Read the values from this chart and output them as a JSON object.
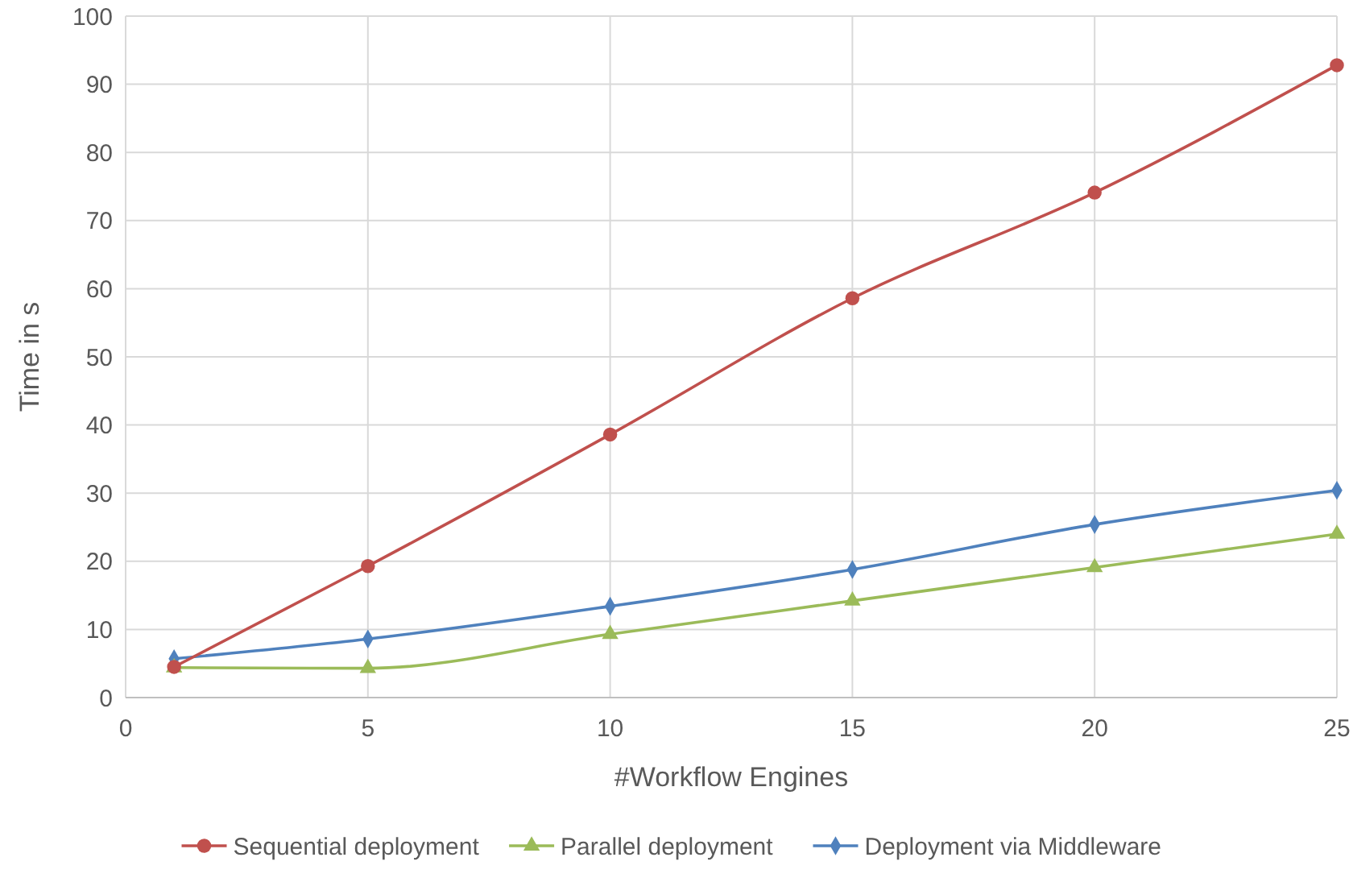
{
  "chart_data": {
    "type": "line",
    "xlabel": "#Workflow Engines",
    "ylabel": "Time in s",
    "x": [
      1,
      5,
      10,
      15,
      20,
      25
    ],
    "series": [
      {
        "name": "Sequential deployment",
        "color": "#c0504d",
        "marker": "circle",
        "values": [
          4.5,
          19.3,
          38.6,
          58.6,
          74.1,
          92.8
        ]
      },
      {
        "name": "Parallel deployment",
        "color": "#9bbb59",
        "marker": "triangle",
        "values": [
          4.4,
          4.3,
          9.3,
          14.2,
          19.1,
          24.0
        ]
      },
      {
        "name": "Deployment via Middleware",
        "color": "#4f81bd",
        "marker": "diamond",
        "values": [
          5.7,
          8.6,
          13.4,
          18.8,
          25.4,
          30.4
        ]
      }
    ],
    "xlim": [
      0,
      25
    ],
    "xticks": [
      0,
      5,
      10,
      15,
      20,
      25
    ],
    "ylim": [
      0,
      100
    ],
    "yticks": [
      0,
      10,
      20,
      30,
      40,
      50,
      60,
      70,
      80,
      90,
      100
    ],
    "grid": true,
    "legend": "bottom",
    "line_style": "solid"
  }
}
